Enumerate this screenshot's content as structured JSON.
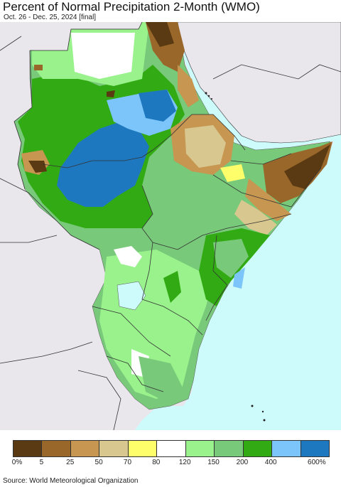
{
  "title": "Percent of Normal Precipitation 2-Month (WMO)",
  "subtitle": "Oct. 26 - Dec. 25, 2024 [final]",
  "source": "Source: World Meteorological Organization",
  "legend": {
    "colors": [
      "#5a3a12",
      "#99672a",
      "#c79650",
      "#d8c78f",
      "#fefe6a",
      "#ffffff",
      "#99f28c",
      "#78c979",
      "#32aa14",
      "#7cc5fb",
      "#1e78c0"
    ],
    "labels": [
      "0%",
      "5",
      "25",
      "50",
      "70",
      "80",
      "120",
      "150",
      "200",
      "400",
      "600%"
    ]
  },
  "map": {
    "sea_color": "#cdfbfc",
    "land_background_color": "#e9e6ec",
    "region": "Greater Horn of Africa"
  }
}
